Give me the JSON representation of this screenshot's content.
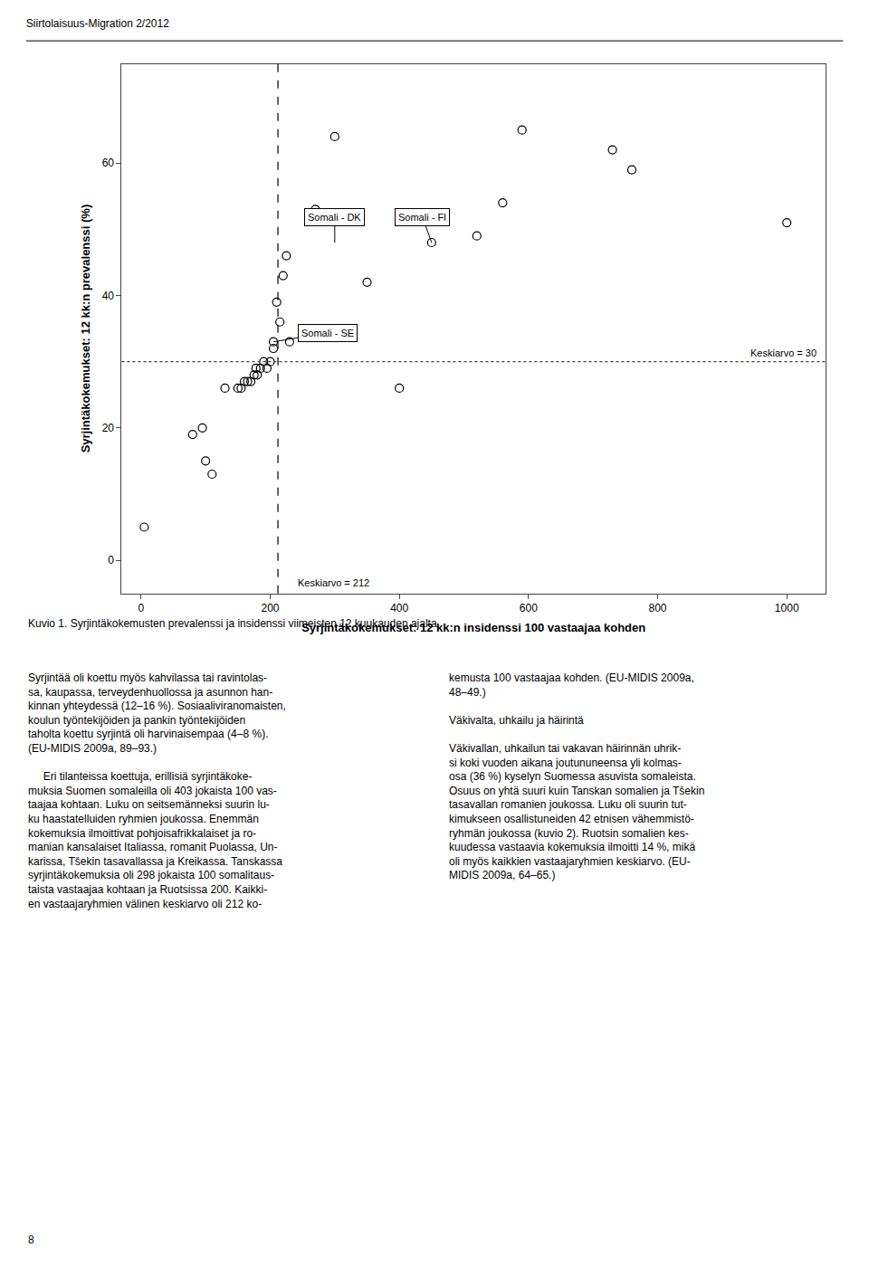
{
  "chart_data": {
    "type": "scatter",
    "title": "Siirtolaisuus-Migration 2/2012",
    "xlabel": "Syrjintäkokemukset: 12 kk:n insidenssi 100 vastaajaa kohden",
    "ylabel": "Syrjintäkokemukset: 12 kk:n prevalenssi (%)",
    "x": [
      5,
      80,
      95,
      100,
      110,
      130,
      150,
      155,
      160,
      165,
      170,
      175,
      178,
      180,
      185,
      190,
      195,
      200,
      205,
      205,
      210,
      215,
      220,
      225,
      230,
      270,
      300,
      350,
      400,
      450,
      520,
      560,
      590,
      730,
      760,
      1000
    ],
    "values": [
      5,
      19,
      20,
      15,
      13,
      26,
      26,
      26,
      27,
      27,
      27,
      28,
      29,
      28,
      29,
      30,
      29,
      30,
      32,
      33,
      39,
      36,
      43,
      46,
      33,
      53,
      64,
      42,
      26,
      48,
      49,
      54,
      65,
      62,
      59,
      51
    ],
    "color": "#000000",
    "marker": "open circle",
    "xlim": [
      -30,
      1060
    ],
    "ylim": [
      -5,
      75
    ],
    "xticks": [
      0,
      200,
      400,
      600,
      800,
      1000
    ],
    "yticks": [
      0,
      20,
      40,
      60
    ],
    "grid": false,
    "reference_lines": [
      {
        "axis": "x",
        "value": 212,
        "label": "Keskiarvo = 212",
        "line_style": "dashed",
        "color": "#000000"
      },
      {
        "axis": "y",
        "value": 30,
        "label": "Keskiarvo = 30",
        "line_style": "dotted",
        "color": "#444444"
      }
    ],
    "annotations": [
      {
        "text": "Somali - DK",
        "x": 300,
        "y": 48
      },
      {
        "text": "Somali - FI",
        "x": 450,
        "y": 48
      },
      {
        "text": "Somali - SE",
        "x": 205,
        "y": 33
      }
    ],
    "caption": "Kuvio 1. Syrjintäkokemusten prevalenssi ja insidenssi viimeisten 12 kuukauden ajalta.",
    "page_texts": [
      "Syrjintää oli koettu myös kahvilassa tai ravintolas-\nsa, kaupassa, terveydenhuollossa ja asunnon han-\nkinnan yhteydessä (12–16 %). Sosiaaliviranomaisten,\nkoulun työntekijöiden ja pankin työntekijöiden\ntaholta koettu syrjintä oli harvinaisempaa (4–8 %).\n(EU-MIDIS 2009a, 89–93.)\n\n     Eri tilanteissa koettuja, erillisiä syrjintäkoke-\nmuksia Suomen somaleilla oli 403 jokaista 100 vas-\ntaajaa kohtaan. Luku on seitsemänneksi suurin lu-\nku haastatelluiden ryhmien joukossa. Enemmän\nkokemuksia ilmoittivat pohjoisafrikkalaiset ja ro-\nmanian kansalaiset Italiassa, romanit Puolassa, Un-\nkarissa, Tšekin tasavallassa ja Kreikassa. Tanskassa\nsyrjintäkokemuksia oli 298 jokaista 100 somalitaus-\ntaista vastaajaa kohtaan ja Ruotsissa 200. Kaikki-\nen vastaajaryhmien välinen keskiarvo oli 212 ko-",
      "kemusta 100 vastaajaa kohden. (EU-MIDIS 2009a,\n48–49.)\n\nVäkivalta, uhkailu ja häirintä\n\nVäkivallan, uhkailun tai vakavan häirinnän uhrik-\nsi koki vuoden aikana joutununeensa yli kolmas-\nosa (36 %) kyselyn Suomessa asuvista somaleista.\nOsuus on yhtä suuri kuin Tanskan somalien ja Tšekin\ntasavallan romanien joukossa. Luku oli suurin tut-\nkimukseen osallistuneiden 42 etnisen vähemmistö-\nryhmän joukossa (kuvio 2). Ruotsin somalien kes-\nkuudessa vastaavia kokemuksia ilmoitti 14 %, mikä\noli myös kaikkien vastaajaryhmien keskiarvo. (EU-\nMIDIS 2009a, 64–65.)"
    ],
    "page_number": "8"
  }
}
